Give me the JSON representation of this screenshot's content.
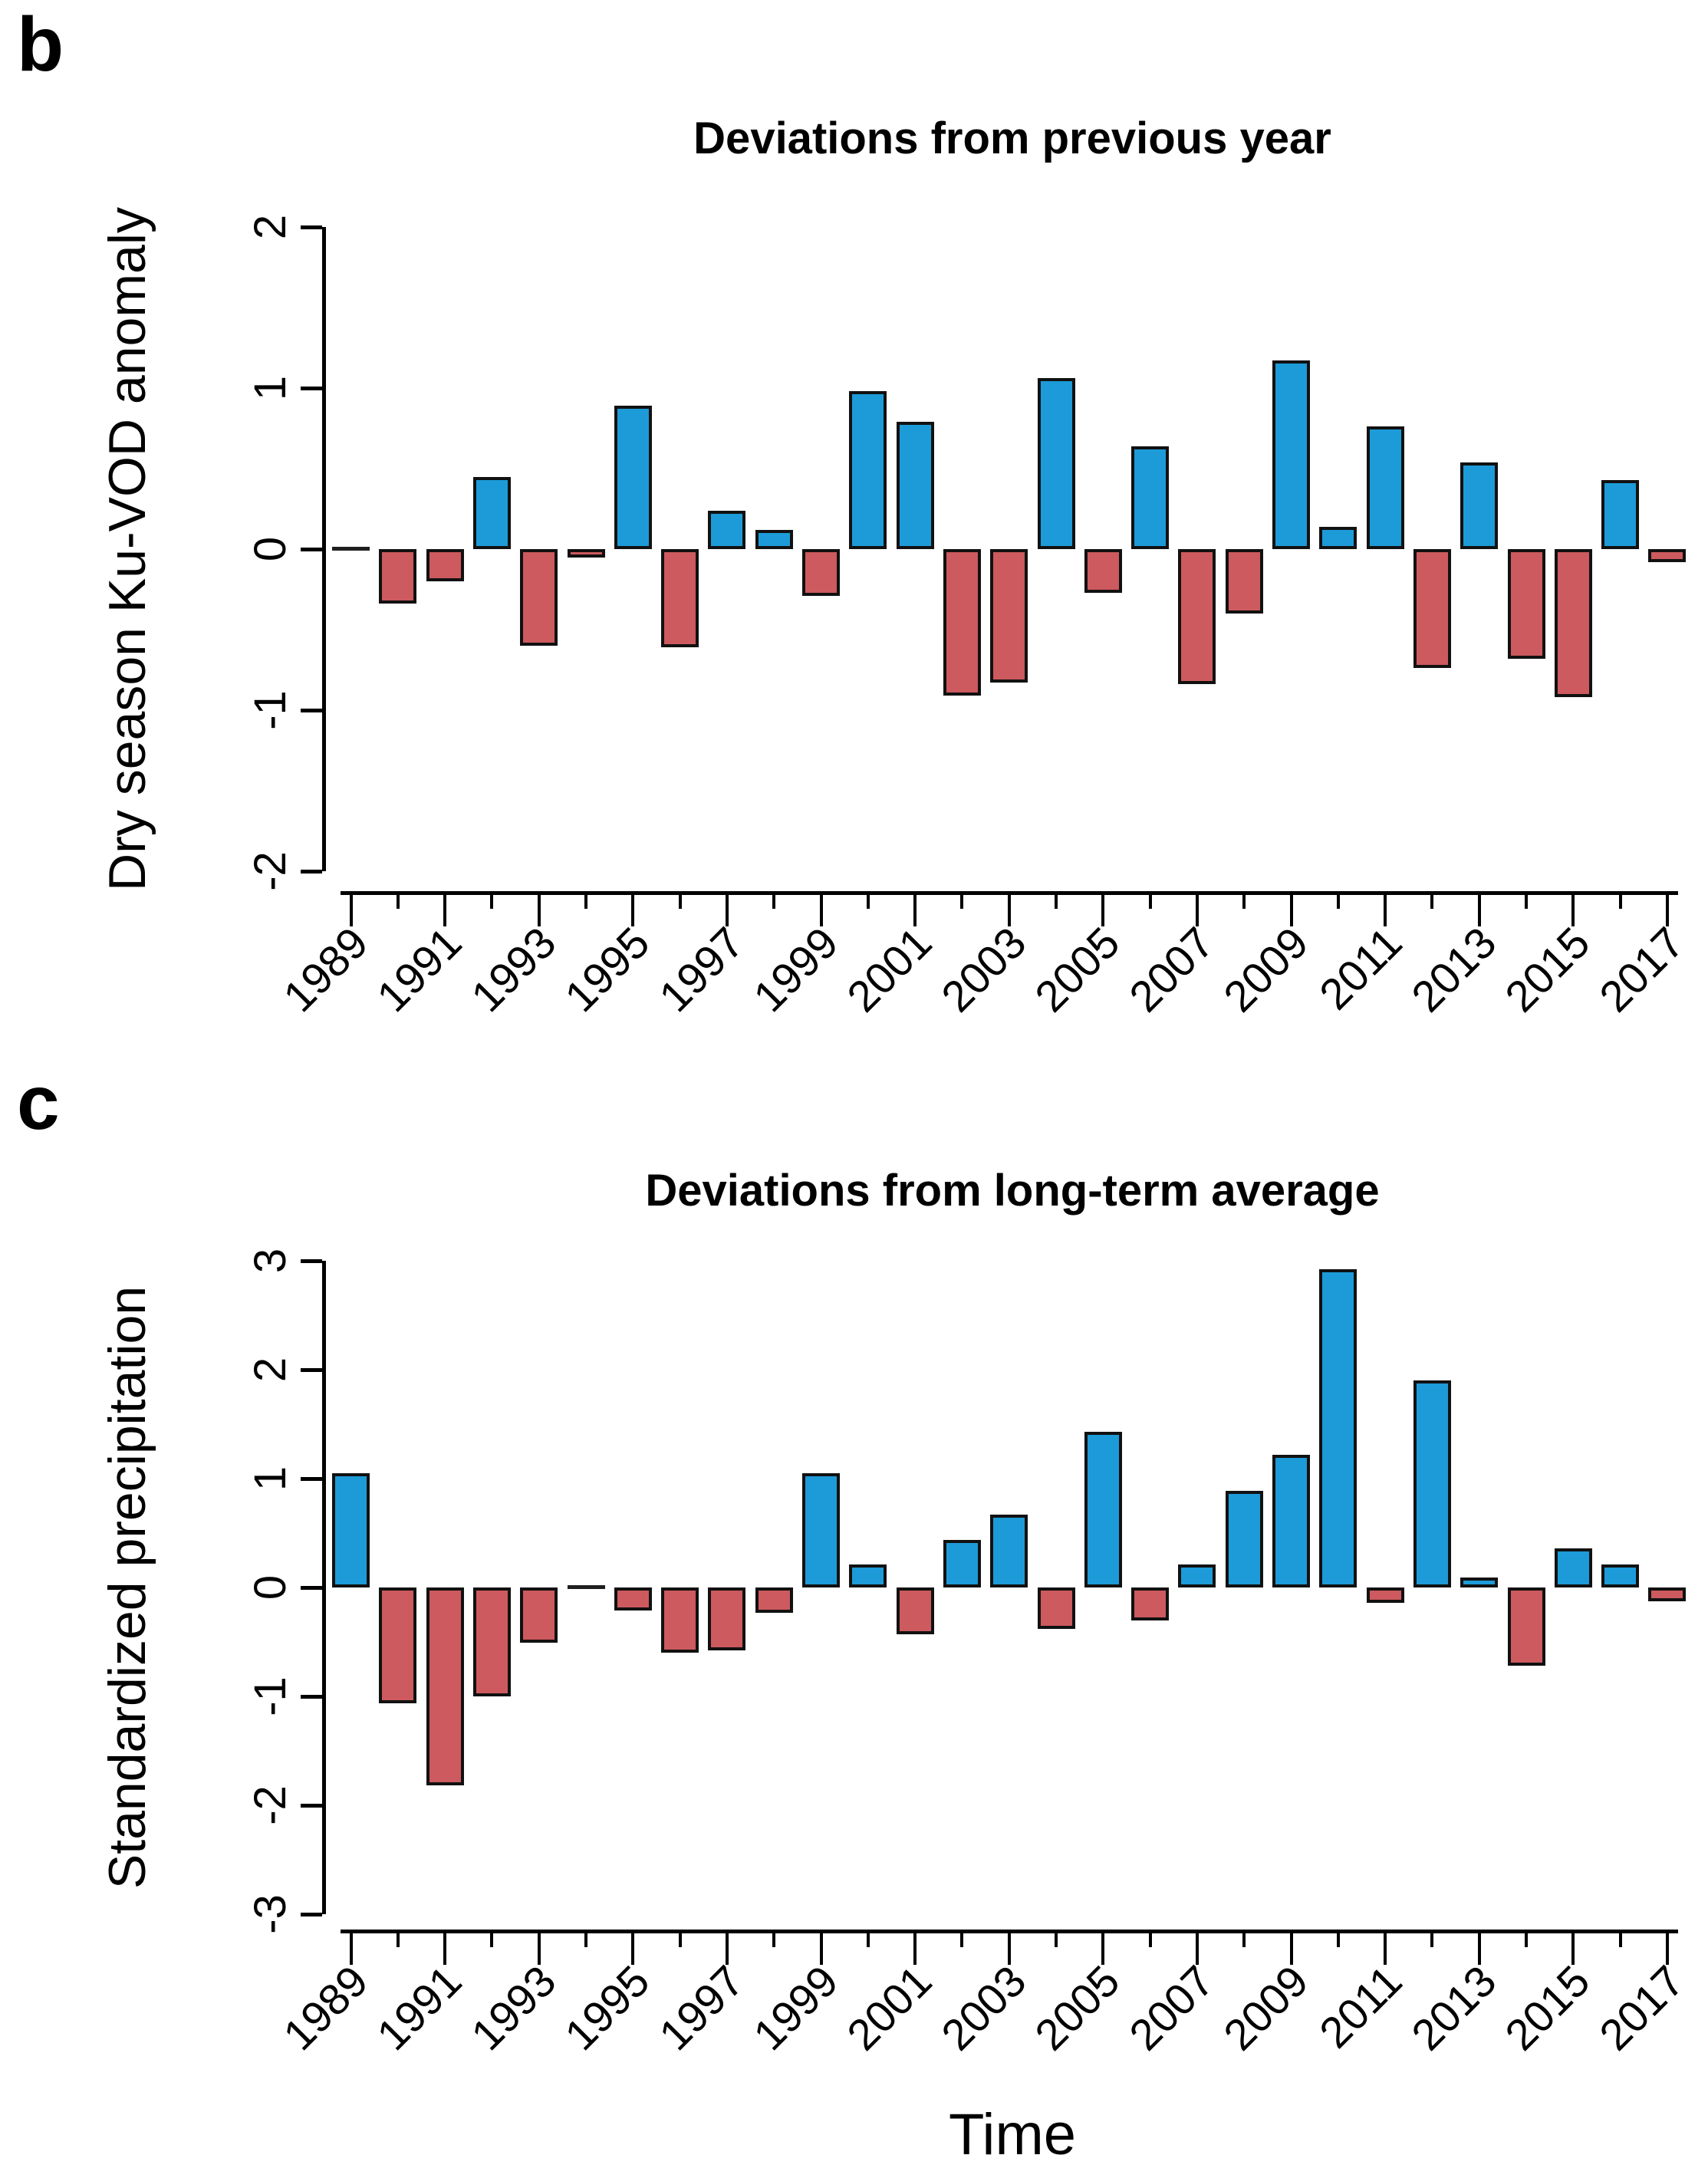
{
  "figure": {
    "background": "#ffffff",
    "panels": [
      {
        "letter": "b",
        "title": "Deviations from previous year",
        "ylabel": "Dry season Ku-VOD anomaly"
      },
      {
        "letter": "c",
        "title": "Deviations from long-term average",
        "ylabel": "Standardized precipitation",
        "xlabel": "Time"
      }
    ]
  },
  "colors": {
    "positive_bar": "#1C9BD8",
    "negative_bar": "#CC5A5E",
    "bar_border": "#111111",
    "axis": "#000000"
  },
  "chart_data": [
    {
      "type": "bar",
      "title": "Deviations from previous year",
      "ylabel": "Dry season Ku-VOD anomaly",
      "xlabel": "",
      "x": [
        1989,
        1990,
        1991,
        1992,
        1993,
        1994,
        1995,
        1996,
        1997,
        1998,
        1999,
        2000,
        2001,
        2002,
        2003,
        2004,
        2005,
        2006,
        2007,
        2008,
        2009,
        2010,
        2011,
        2012,
        2013,
        2014,
        2015,
        2016,
        2017
      ],
      "values": [
        0.0,
        -0.34,
        -0.2,
        0.45,
        -0.6,
        -0.05,
        0.89,
        -0.61,
        0.24,
        0.12,
        -0.29,
        0.98,
        0.79,
        -0.91,
        -0.83,
        1.06,
        -0.27,
        0.64,
        -0.84,
        -0.4,
        1.17,
        0.14,
        0.76,
        -0.74,
        0.54,
        -0.68,
        -0.92,
        0.43,
        -0.08
      ],
      "ylim": [
        -2,
        2
      ],
      "yticks": [
        -2,
        -1,
        0,
        1,
        2
      ],
      "ytick_labels": [
        "-2",
        "-1",
        "0",
        "1",
        "2"
      ],
      "x_tick_labels": [
        "1989",
        "1991",
        "1993",
        "1995",
        "1997",
        "1999",
        "2001",
        "2003",
        "2005",
        "2007",
        "2009",
        "2011",
        "2013",
        "2015",
        "2017"
      ],
      "grid": false,
      "legend": "none",
      "bar_color_positive": "#1C9BD8",
      "bar_color_negative": "#CC5A5E"
    },
    {
      "type": "bar",
      "title": "Deviations from long-term average",
      "ylabel": "Standardized precipitation",
      "xlabel": "Time",
      "x": [
        1989,
        1990,
        1991,
        1992,
        1993,
        1994,
        1995,
        1996,
        1997,
        1998,
        1999,
        2000,
        2001,
        2002,
        2003,
        2004,
        2005,
        2006,
        2007,
        2008,
        2009,
        2010,
        2011,
        2012,
        2013,
        2014,
        2015,
        2016,
        2017
      ],
      "values": [
        1.05,
        -1.06,
        -1.82,
        -1.0,
        -0.51,
        -0.01,
        -0.21,
        -0.6,
        -0.58,
        -0.23,
        1.05,
        0.21,
        -0.43,
        0.44,
        0.67,
        -0.38,
        1.43,
        -0.3,
        0.21,
        0.89,
        1.22,
        2.92,
        -0.14,
        1.9,
        0.09,
        -0.72,
        0.36,
        0.21,
        -0.13
      ],
      "ylim": [
        -3,
        3
      ],
      "yticks": [
        -3,
        -2,
        -1,
        0,
        1,
        2,
        3
      ],
      "ytick_labels": [
        "-3",
        "-2",
        "-1",
        "0",
        "1",
        "2",
        "3"
      ],
      "x_tick_labels": [
        "1989",
        "1991",
        "1993",
        "1995",
        "1997",
        "1999",
        "2001",
        "2003",
        "2005",
        "2007",
        "2009",
        "2011",
        "2013",
        "2015",
        "2017"
      ],
      "grid": false,
      "legend": "none",
      "bar_color_positive": "#1C9BD8",
      "bar_color_negative": "#CC5A5E"
    }
  ]
}
